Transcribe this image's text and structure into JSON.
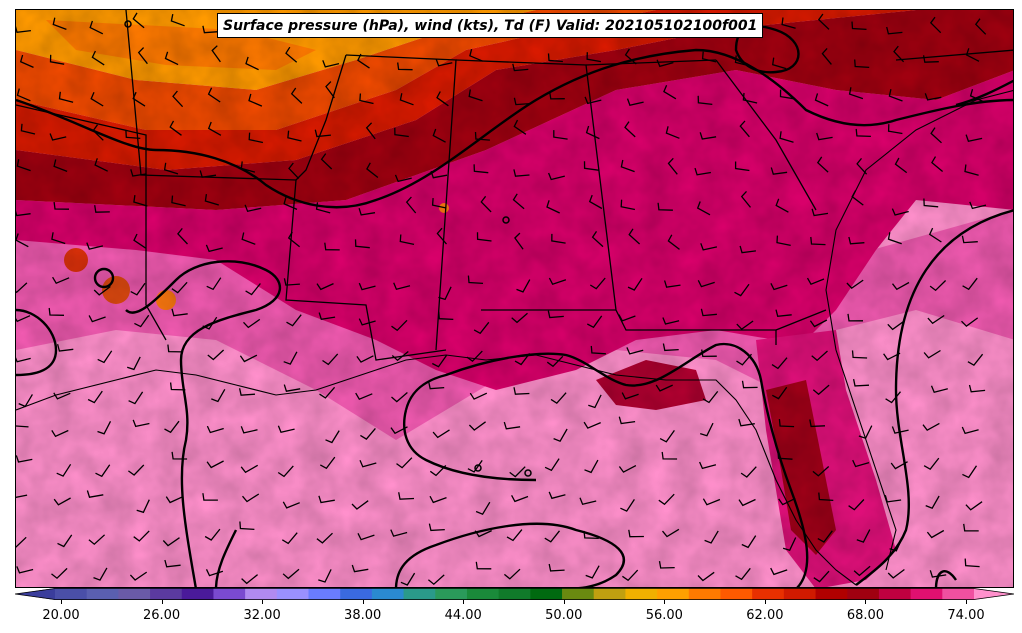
{
  "title": "Surface pressure (hPa), wind (kts), Td (F) Valid: 202105102100f001",
  "colorbar": {
    "ticks": [
      "20.00",
      "26.00",
      "32.00",
      "38.00",
      "44.00",
      "50.00",
      "56.00",
      "62.00",
      "68.00",
      "74.00"
    ],
    "colors": [
      "#3a3d9c",
      "#4a4fa8",
      "#5a5fb0",
      "#6a5aa8",
      "#5b3aa0",
      "#4a1a9a",
      "#7a4ad0",
      "#b08af0",
      "#9a90ff",
      "#6a7cff",
      "#3a6ae0",
      "#2a8ad0",
      "#2a9a8a",
      "#2a9a5a",
      "#1a8a3a",
      "#107a2a",
      "#006a10",
      "#6a8a10",
      "#c0a010",
      "#f0b000",
      "#ffa000",
      "#ff7a00",
      "#ff5a00",
      "#e83000",
      "#d01a00",
      "#b00000",
      "#a00010",
      "#c00040",
      "#e01070",
      "#f050a0",
      "#ff90cc"
    ]
  },
  "palette": {
    "cold": "#ff9a00",
    "warm1": "#e83a00",
    "warm2": "#c00010",
    "dark": "#a00010",
    "magenta": "#d8006a",
    "pink1": "#f050a8",
    "pink2": "#ff90cc"
  }
}
